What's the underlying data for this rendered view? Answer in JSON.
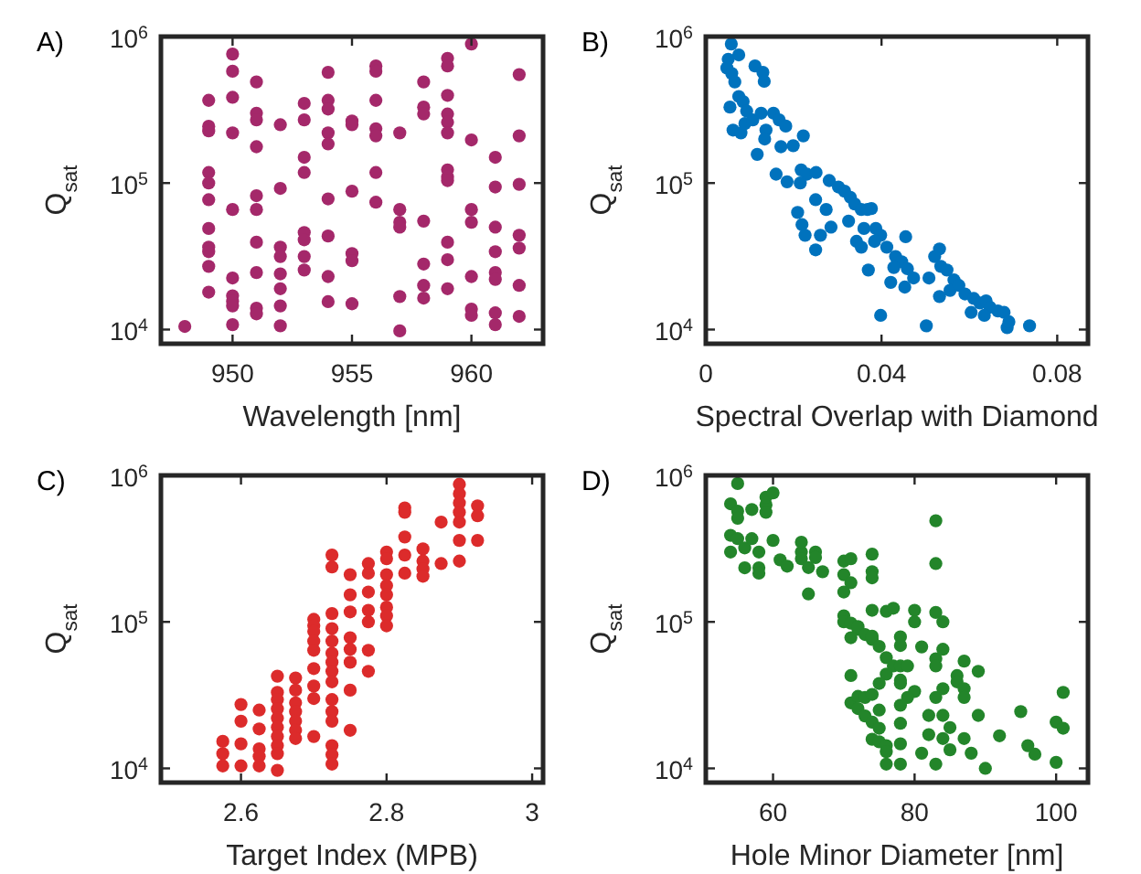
{
  "chart_data": [
    {
      "type": "scatter",
      "title": "A)",
      "xlabel": "Wavelength [nm]",
      "ylabel": "Q$_{sat}$",
      "log": "y",
      "marker": "circle",
      "color": "#a4286a",
      "xlim": [
        947,
        963
      ],
      "ylim": [
        8000,
        1000000
      ],
      "xticks": [
        950,
        955,
        960
      ],
      "yticks": [
        {
          "value": 10000,
          "label": "10$^{4}$"
        },
        {
          "value": 100000,
          "label": "10$^{5}$"
        },
        {
          "value": 1000000,
          "label": "10$^{6}$"
        }
      ],
      "x": [
        948,
        949,
        949,
        949,
        949,
        949,
        949,
        949,
        949,
        949,
        949,
        949,
        950,
        950,
        950,
        950,
        950,
        950,
        950,
        950,
        950,
        950,
        951,
        951,
        951,
        951,
        951,
        951,
        951,
        951,
        951,
        951,
        952,
        952,
        952,
        952,
        952,
        952,
        952,
        952,
        953,
        953,
        953,
        953,
        953,
        953,
        953,
        953,
        954,
        954,
        954,
        954,
        954,
        954,
        954,
        954,
        954,
        955,
        955,
        955,
        955,
        955,
        955,
        956,
        956,
        956,
        956,
        956,
        956,
        956,
        957,
        957,
        957,
        957,
        957,
        957,
        958,
        958,
        958,
        958,
        958,
        958,
        958,
        959,
        959,
        959,
        959,
        959,
        959,
        959,
        959,
        959,
        959,
        959,
        959,
        960,
        960,
        960,
        960,
        960,
        960,
        960,
        961,
        961,
        961,
        961,
        961,
        961,
        961,
        961,
        962,
        962,
        962,
        962,
        962,
        962,
        962
      ],
      "values": [
        10500,
        367000,
        244000,
        227000,
        118000,
        100000,
        77000,
        49000,
        36500,
        34000,
        27000,
        18000,
        760000,
        580000,
        385000,
        220000,
        66000,
        22500,
        17000,
        15600,
        14500,
        10800,
        490000,
        300000,
        270000,
        177000,
        82000,
        66000,
        39500,
        24500,
        14000,
        12800,
        250000,
        92000,
        36500,
        31500,
        24000,
        19000,
        14500,
        10600,
        350000,
        270000,
        150000,
        118000,
        46000,
        41000,
        31500,
        25500,
        570000,
        367000,
        320000,
        220000,
        185000,
        78000,
        43500,
        23000,
        15500,
        265000,
        250000,
        88000,
        33000,
        29500,
        15000,
        630000,
        580000,
        367000,
        235000,
        210000,
        118000,
        74000,
        220000,
        66000,
        54000,
        50000,
        16800,
        9800,
        490000,
        330000,
        296000,
        55000,
        28000,
        20000,
        16400,
        710000,
        630000,
        397000,
        296000,
        260000,
        220000,
        123000,
        110000,
        104000,
        39500,
        30000,
        19000,
        890000,
        197000,
        66000,
        54000,
        23000,
        13800,
        12500,
        150000,
        94000,
        50000,
        34000,
        24500,
        22000,
        13000,
        10800,
        550000,
        210000,
        98000,
        44000,
        36000,
        20000,
        12300
      ]
    },
    {
      "type": "scatter",
      "title": "B)",
      "xlabel": "Spectral Overlap with Diamond",
      "ylabel": "Q$_{sat}$",
      "log": "y",
      "marker": "circle",
      "color": "#0072bd",
      "xlim": [
        0,
        0.087
      ],
      "ylim": [
        8000,
        1000000
      ],
      "xticks": [
        0,
        0.04,
        0.08
      ],
      "yticks": [
        {
          "value": 10000,
          "label": "10$^{4}$"
        },
        {
          "value": 100000,
          "label": "10$^{5}$"
        },
        {
          "value": 1000000,
          "label": "10$^{6}$"
        }
      ],
      "x": [
        0.0058,
        0.0051,
        0.0075,
        0.0048,
        0.0059,
        0.0066,
        0.0112,
        0.013,
        0.0133,
        0.0055,
        0.0075,
        0.0085,
        0.0093,
        0.0062,
        0.008,
        0.0089,
        0.0107,
        0.0126,
        0.0137,
        0.0154,
        0.0167,
        0.0182,
        0.0134,
        0.0117,
        0.0171,
        0.0199,
        0.0222,
        0.016,
        0.0185,
        0.0217,
        0.023,
        0.0251,
        0.0215,
        0.0281,
        0.0302,
        0.0316,
        0.0329,
        0.0339,
        0.0354,
        0.0368,
        0.0377,
        0.025,
        0.0209,
        0.0219,
        0.0274,
        0.0285,
        0.0226,
        0.0261,
        0.025,
        0.0325,
        0.036,
        0.0343,
        0.0354,
        0.0387,
        0.0398,
        0.0384,
        0.0412,
        0.037,
        0.0421,
        0.0455,
        0.0432,
        0.0446,
        0.0428,
        0.0459,
        0.0473,
        0.0453,
        0.0398,
        0.0532,
        0.0521,
        0.0535,
        0.0508,
        0.0549,
        0.0565,
        0.0532,
        0.0556,
        0.0576,
        0.059,
        0.061,
        0.0604,
        0.0624,
        0.0638,
        0.0647,
        0.0665,
        0.0679,
        0.0634,
        0.0686,
        0.069,
        0.0737,
        0.0502
      ],
      "values": [
        890000,
        700000,
        750000,
        610000,
        560000,
        490000,
        630000,
        570000,
        495000,
        330000,
        390000,
        360000,
        310000,
        230000,
        220000,
        255000,
        270000,
        300000,
        230000,
        300000,
        270000,
        245000,
        200000,
        157000,
        177000,
        180000,
        210000,
        115000,
        102000,
        123000,
        115000,
        118000,
        100000,
        104000,
        94000,
        88000,
        80000,
        72000,
        66000,
        66000,
        67000,
        77000,
        63000,
        52000,
        66000,
        50000,
        44000,
        44000,
        35000,
        55000,
        49000,
        40000,
        36500,
        49000,
        44000,
        40000,
        36500,
        25500,
        21000,
        43000,
        31500,
        29000,
        26500,
        26000,
        22500,
        19500,
        12500,
        35500,
        31500,
        27000,
        22500,
        25500,
        21800,
        16800,
        18500,
        20000,
        17500,
        16300,
        13100,
        15200,
        15700,
        14200,
        13400,
        13100,
        12500,
        10300,
        11300,
        10600,
        10600
      ]
    },
    {
      "type": "scatter",
      "title": "C)",
      "xlabel": "Target Index (MPB)",
      "ylabel": "Q$_{sat}$",
      "log": "y",
      "marker": "circle",
      "color": "#dc2b2b",
      "xlim": [
        2.49,
        3.015
      ],
      "ylim": [
        8000,
        1000000
      ],
      "xticks": [
        2.6,
        2.8,
        3
      ],
      "yticks": [
        {
          "value": 10000,
          "label": "10$^{4}$"
        },
        {
          "value": 100000,
          "label": "10$^{5}$"
        },
        {
          "value": 1000000,
          "label": "10$^{6}$"
        }
      ],
      "x": [
        2.575,
        2.575,
        2.575,
        2.6,
        2.6,
        2.6,
        2.6,
        2.625,
        2.625,
        2.625,
        2.625,
        2.625,
        2.65,
        2.65,
        2.65,
        2.65,
        2.65,
        2.65,
        2.65,
        2.65,
        2.65,
        2.65,
        2.675,
        2.675,
        2.675,
        2.675,
        2.675,
        2.675,
        2.675,
        2.7,
        2.7,
        2.7,
        2.7,
        2.7,
        2.7,
        2.7,
        2.7,
        2.7,
        2.725,
        2.725,
        2.725,
        2.725,
        2.725,
        2.725,
        2.725,
        2.725,
        2.725,
        2.725,
        2.725,
        2.725,
        2.725,
        2.725,
        2.725,
        2.75,
        2.75,
        2.75,
        2.75,
        2.75,
        2.75,
        2.75,
        2.75,
        2.775,
        2.775,
        2.775,
        2.775,
        2.775,
        2.775,
        2.775,
        2.8,
        2.8,
        2.8,
        2.8,
        2.8,
        2.8,
        2.8,
        2.8,
        2.825,
        2.825,
        2.825,
        2.825,
        2.825,
        2.85,
        2.85,
        2.85,
        2.85,
        2.875,
        2.875,
        2.9,
        2.9,
        2.9,
        2.9,
        2.9,
        2.9,
        2.9,
        2.925,
        2.925,
        2.925
      ],
      "values": [
        15300,
        12600,
        10400,
        27300,
        21000,
        14700,
        10400,
        25000,
        18600,
        13600,
        12100,
        10400,
        42600,
        33000,
        29500,
        25500,
        22000,
        19100,
        16500,
        14300,
        12600,
        9700,
        41400,
        34200,
        28000,
        24400,
        21000,
        18200,
        16000,
        104000,
        94000,
        86000,
        74000,
        64000,
        48000,
        36500,
        30000,
        16500,
        286000,
        237000,
        114000,
        90000,
        74000,
        61000,
        53000,
        46000,
        39000,
        29500,
        24400,
        21000,
        14300,
        12400,
        10700,
        210000,
        153000,
        117000,
        78000,
        65000,
        53000,
        34200,
        18200,
        250000,
        215000,
        160000,
        120000,
        100000,
        64000,
        46000,
        300000,
        270000,
        210000,
        177000,
        153000,
        126000,
        110000,
        94000,
        600000,
        560000,
        380000,
        286000,
        215000,
        315000,
        260000,
        230000,
        205000,
        480000,
        250000,
        870000,
        750000,
        650000,
        560000,
        480000,
        360000,
        260000,
        620000,
        530000,
        360000
      ]
    },
    {
      "type": "scatter",
      "title": "D)",
      "xlabel": "Hole Minor Diameter [nm]",
      "ylabel": "Q$_{sat}$",
      "log": "y",
      "marker": "circle",
      "color": "#23852a",
      "xlim": [
        50.5,
        104.5
      ],
      "ylim": [
        8000,
        1000000
      ],
      "xticks": [
        60,
        80,
        100
      ],
      "yticks": [
        {
          "value": 10000,
          "label": "10$^{4}$"
        },
        {
          "value": 100000,
          "label": "10$^{5}$"
        },
        {
          "value": 1000000,
          "label": "10$^{6}$"
        }
      ],
      "x": [
        55,
        54,
        55,
        55,
        57,
        59,
        59,
        60,
        59,
        54,
        55,
        56,
        57,
        60,
        54,
        58,
        56,
        58,
        58,
        61,
        62,
        64,
        64,
        64,
        65,
        65,
        66,
        66,
        67,
        70,
        71,
        70,
        71,
        70,
        74,
        74,
        74,
        70,
        70,
        71,
        72,
        71,
        72,
        73,
        74,
        74,
        75,
        74,
        76,
        77,
        80,
        80,
        78,
        78,
        76,
        77,
        78,
        79,
        76,
        75,
        78,
        78,
        80,
        79,
        78,
        71,
        71,
        72,
        73,
        74,
        72,
        73,
        74,
        75,
        75,
        74,
        75,
        76,
        76,
        78,
        76,
        78,
        78,
        81,
        83,
        83,
        83,
        83,
        83,
        84,
        84,
        83,
        84,
        82,
        82,
        81,
        83,
        84,
        84,
        85,
        85,
        86,
        86,
        87,
        87,
        87,
        87,
        88,
        89,
        89,
        90,
        92,
        95,
        96,
        97,
        100,
        100,
        101,
        101
      ],
      "values": [
        880000,
        640000,
        570000,
        510000,
        585000,
        630000,
        710000,
        760000,
        560000,
        390000,
        370000,
        320000,
        370000,
        360000,
        300000,
        300000,
        234000,
        234000,
        215000,
        265000,
        240000,
        300000,
        350000,
        270000,
        235000,
        155000,
        300000,
        275000,
        220000,
        260000,
        270000,
        210000,
        185000,
        160000,
        290000,
        220000,
        200000,
        110000,
        100000,
        98000,
        89000,
        78000,
        93000,
        82000,
        76000,
        80000,
        68000,
        120000,
        118000,
        124000,
        120000,
        100000,
        79000,
        69000,
        57000,
        50000,
        50000,
        50000,
        44000,
        38000,
        40000,
        38000,
        33500,
        30500,
        27000,
        43000,
        28000,
        31000,
        30500,
        32000,
        25600,
        22800,
        20700,
        18800,
        25000,
        15800,
        15200,
        14300,
        13000,
        14700,
        10700,
        10700,
        20300,
        67500,
        116000,
        490000,
        250000,
        56000,
        50000,
        100000,
        65000,
        30500,
        35000,
        23000,
        17000,
        12700,
        10700,
        23000,
        16000,
        19000,
        13400,
        43000,
        39000,
        54000,
        35000,
        30500,
        16000,
        12700,
        46000,
        23000,
        10000,
        16700,
        24400,
        14300,
        12500,
        11000,
        20700,
        18800,
        33000
      ]
    }
  ]
}
